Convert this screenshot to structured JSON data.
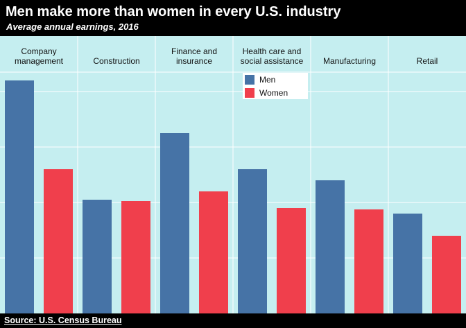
{
  "header": {
    "title": "Men make more than women in every U.S. industry",
    "subtitle": "Average annual earnings, 2016"
  },
  "footer": {
    "source": "Source: U.S. Census Bureau"
  },
  "colors": {
    "men": "#4673a6",
    "women": "#f03f4c",
    "plot_background": "#c5eef0",
    "grid": "#ffffff",
    "frame": "#000000"
  },
  "chart_data": {
    "type": "bar",
    "title": "Men make more than women in every U.S. industry",
    "subtitle": "Average annual earnings, 2016",
    "xlabel": "",
    "ylabel": "",
    "categories": [
      [
        "Company",
        "management"
      ],
      [
        "Construction"
      ],
      [
        "Finance and",
        "insurance"
      ],
      [
        "Health care and",
        "social assistance"
      ],
      [
        "Manufacturing"
      ],
      [
        "Retail"
      ]
    ],
    "series": [
      {
        "name": "Men",
        "values": [
          84,
          41,
          65,
          52,
          48,
          36
        ]
      },
      {
        "name": "Women",
        "values": [
          52,
          40.5,
          44,
          38,
          37.5,
          28
        ]
      }
    ],
    "ylim": [
      0,
      100
    ],
    "grid": true,
    "legend_position": "top, inside the Health care and social assistance panel",
    "axis_labels_shown": false
  }
}
